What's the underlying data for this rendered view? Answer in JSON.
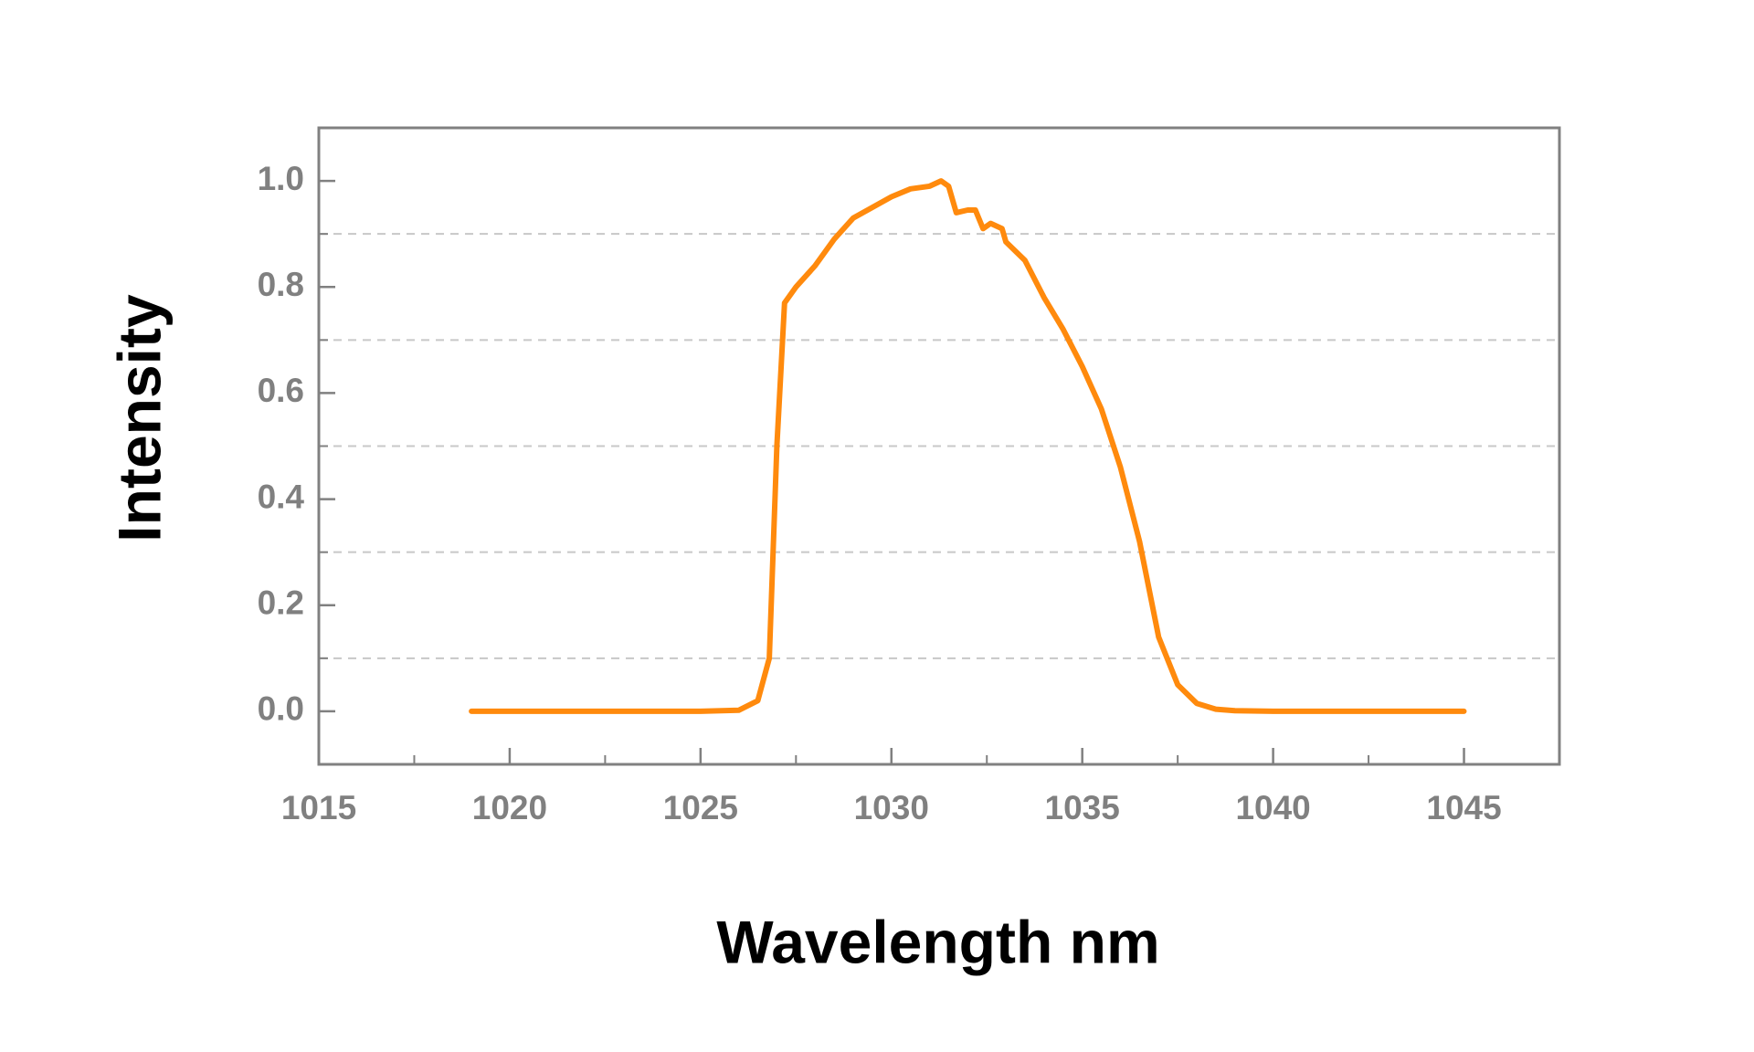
{
  "chart_data": {
    "type": "line",
    "x_label": "Wavelength nm",
    "y_label": "Intensity",
    "x": [
      1019,
      1025,
      1026,
      1026.5,
      1026.8,
      1027.0,
      1027.2,
      1027.5,
      1028,
      1028.5,
      1029,
      1029.5,
      1030,
      1030.5,
      1031,
      1031.3,
      1031.5,
      1031.7,
      1032,
      1032.2,
      1032.4,
      1032.6,
      1032.9,
      1033,
      1033.5,
      1034,
      1034.5,
      1035,
      1035.5,
      1036,
      1036.5,
      1037,
      1037.5,
      1038,
      1038.5,
      1039,
      1040,
      1045
    ],
    "series": [
      {
        "color": "#ff8a0d",
        "values": [
          0,
          0,
          0.002,
          0.02,
          0.1,
          0.5,
          0.77,
          0.8,
          0.84,
          0.89,
          0.93,
          0.95,
          0.97,
          0.985,
          0.99,
          1.0,
          0.99,
          0.94,
          0.945,
          0.945,
          0.91,
          0.92,
          0.91,
          0.885,
          0.85,
          0.78,
          0.72,
          0.65,
          0.57,
          0.46,
          0.32,
          0.14,
          0.05,
          0.015,
          0.004,
          0.001,
          0,
          0
        ]
      }
    ],
    "xlim": [
      1015,
      1047.5
    ],
    "ylim": [
      -0.1,
      1.1
    ],
    "xticks": [
      1015,
      1020,
      1025,
      1030,
      1035,
      1040,
      1045
    ],
    "xminorticks": [
      1017.5,
      1022.5,
      1027.5,
      1032.5,
      1037.5,
      1042.5
    ],
    "yticks": [
      {
        "value": 0,
        "label": "0.0"
      },
      0.2,
      0.4,
      0.6,
      0.8,
      {
        "value": 1,
        "label": "1.0"
      }
    ],
    "ygrid": [
      0.1,
      0.3,
      0.5,
      0.7,
      0.9
    ]
  }
}
